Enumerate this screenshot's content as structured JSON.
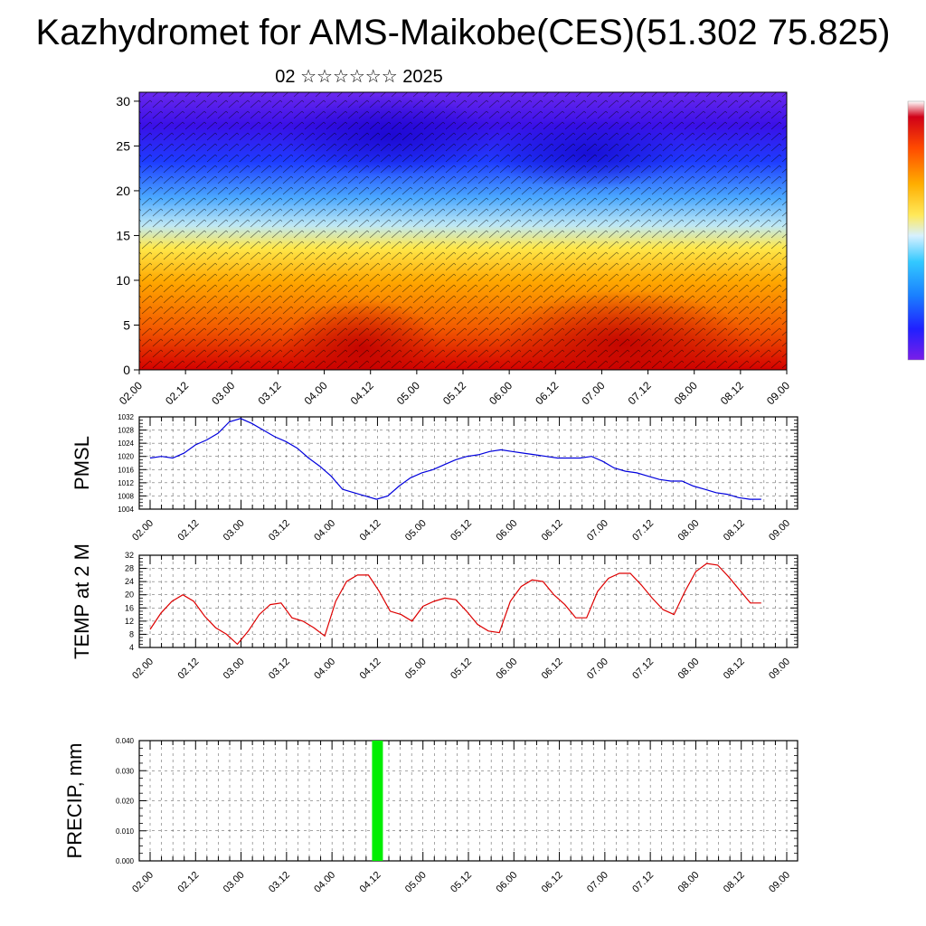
{
  "title": "Kazhydromet for AMS-Maikobe(CES)(51.302 75.825)",
  "subtitle": "02 ☆☆☆☆☆☆ 2025",
  "colors": {
    "pmsl_line": "#0000dd",
    "temp_line": "#dd0000",
    "precip_bar": "#00ee00",
    "grid": "#000000"
  },
  "chart_data": [
    {
      "type": "heatmap",
      "title": "",
      "xlabel": "",
      "ylabel": "",
      "x_ticks": [
        "02.00",
        "02.12",
        "03.00",
        "03.12",
        "04.00",
        "04.12",
        "05.00",
        "05.12",
        "06.00",
        "06.12",
        "07.00",
        "07.12",
        "08.00",
        "08.12",
        "09.00"
      ],
      "y_ticks": [
        "0",
        "5",
        "10",
        "15",
        "20",
        "25",
        "30"
      ],
      "ylim": [
        0,
        31
      ],
      "overlay": "wind barbs",
      "colorbar": "purple-blue-cyan-yellow-orange-red (no labels)"
    },
    {
      "type": "line",
      "ylabel": "PMSL",
      "ylim": [
        1004,
        1032
      ],
      "y_ticks": [
        "1004",
        "1008",
        "1012",
        "1016",
        "1020",
        "1024",
        "1028",
        "1032"
      ],
      "x_ticks": [
        "02.00",
        "02.12",
        "03.00",
        "03.12",
        "04.00",
        "04.12",
        "05.00",
        "05.12",
        "06.00",
        "06.12",
        "07.00",
        "07.12",
        "08.00",
        "08.12",
        "09.00"
      ],
      "grid": true,
      "series": [
        {
          "values": [
            1019.5,
            1020,
            1019.5,
            1021,
            1023.5,
            1025,
            1027,
            1030.5,
            1031.5,
            1030,
            1028,
            1026,
            1024.5,
            1022.5,
            1019.5,
            1017,
            1014,
            1010,
            1009,
            1008,
            1007,
            1008,
            1011,
            1013.5,
            1015,
            1016,
            1017.5,
            1019,
            1020,
            1020.5,
            1021.5,
            1022,
            1021.5,
            1021,
            1020.5,
            1020,
            1019.5,
            1019.5,
            1019.5,
            1020,
            1018.5,
            1016.5,
            1015.5,
            1015,
            1014,
            1013,
            1012.5,
            1012.5,
            1011,
            1010,
            1009,
            1008.5,
            1007.5,
            1007,
            1007
          ]
        }
      ]
    },
    {
      "type": "line",
      "ylabel": "TEMP at 2 M",
      "ylim": [
        4,
        32
      ],
      "y_ticks": [
        "4",
        "8",
        "12",
        "16",
        "20",
        "24",
        "28",
        "32"
      ],
      "x_ticks": [
        "02.00",
        "02.12",
        "03.00",
        "03.12",
        "04.00",
        "04.12",
        "05.00",
        "05.12",
        "06.00",
        "06.12",
        "07.00",
        "07.12",
        "08.00",
        "08.12",
        "09.00"
      ],
      "grid": true,
      "series": [
        {
          "values": [
            9.5,
            14.5,
            18,
            20,
            18,
            13.5,
            10,
            8,
            5,
            9,
            14,
            17,
            17.5,
            13,
            12,
            10,
            7.5,
            18,
            24,
            26,
            26,
            21,
            15,
            14,
            12,
            16.5,
            18,
            19,
            18.5,
            15,
            11,
            9,
            8.5,
            18,
            22.5,
            24.5,
            24,
            20,
            17,
            13,
            13,
            21,
            25,
            26.5,
            26.5,
            23,
            19,
            15.5,
            14,
            21,
            27,
            29.5,
            29,
            25.5,
            21.5,
            17.5,
            17.5
          ]
        }
      ]
    },
    {
      "type": "bar",
      "ylabel": "PRECIP, mm",
      "ylim": [
        0,
        0.04
      ],
      "y_ticks": [
        "0.000",
        "0.010",
        "0.020",
        "0.030",
        "0.040"
      ],
      "x_ticks": [
        "02.00",
        "02.12",
        "03.00",
        "03.12",
        "04.00",
        "04.12",
        "05.00",
        "05.12",
        "06.00",
        "06.12",
        "07.00",
        "07.12",
        "08.00",
        "08.12",
        "09.00"
      ],
      "grid": true,
      "bars": [
        {
          "x": "04.12",
          "value": 0.04
        }
      ]
    }
  ]
}
